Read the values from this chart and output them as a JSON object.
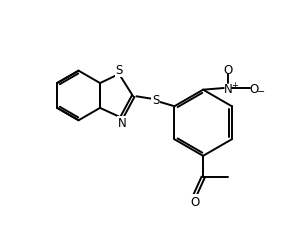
{
  "background_color": "#ffffff",
  "line_color": "#000000",
  "line_width": 1.4,
  "font_size": 8.5,
  "figsize": [
    3.07,
    2.26
  ],
  "dpi": 100,
  "xlim": [
    -0.2,
    3.1
  ],
  "ylim": [
    -0.5,
    2.2
  ]
}
